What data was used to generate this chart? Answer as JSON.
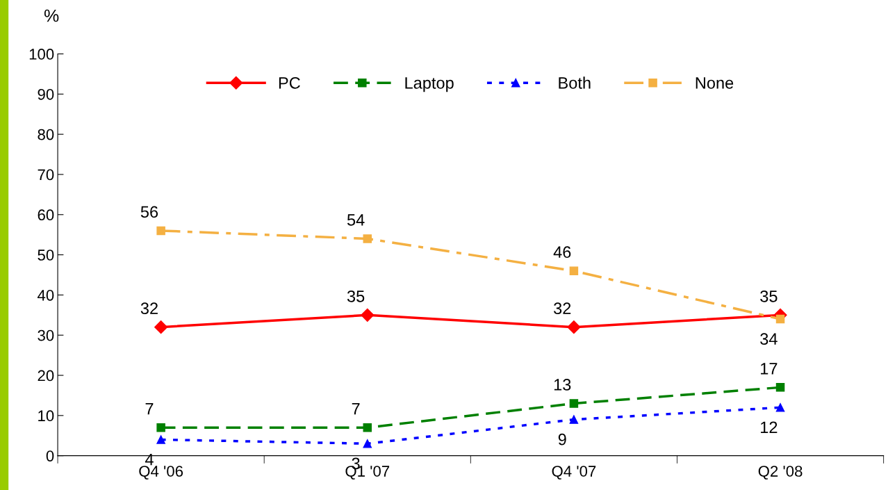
{
  "chart_data": {
    "type": "line",
    "ylabel": "%",
    "categories": [
      "Q4 '06",
      "Q1 '07",
      "Q4 '07",
      "Q2 '08"
    ],
    "ylim": [
      0,
      100
    ],
    "yticks": [
      0,
      10,
      20,
      30,
      40,
      50,
      60,
      70,
      80,
      90,
      100
    ],
    "grid": false,
    "legend": "top",
    "data_labels": true,
    "series": [
      {
        "name": "PC",
        "color": "#ff0000",
        "values": [
          32,
          35,
          32,
          35
        ],
        "marker": "diamond",
        "line_style": "solid"
      },
      {
        "name": "Laptop",
        "color": "#008000",
        "values": [
          7,
          7,
          13,
          17
        ],
        "marker": "square",
        "line_style": "dashed"
      },
      {
        "name": "Both",
        "color": "#0000ff",
        "values": [
          4,
          3,
          9,
          12
        ],
        "marker": "triangle",
        "line_style": "dotted"
      },
      {
        "name": "None",
        "color": "#f4b042",
        "values": [
          56,
          54,
          46,
          34
        ],
        "marker": "square",
        "line_style": "dashdot"
      }
    ]
  }
}
